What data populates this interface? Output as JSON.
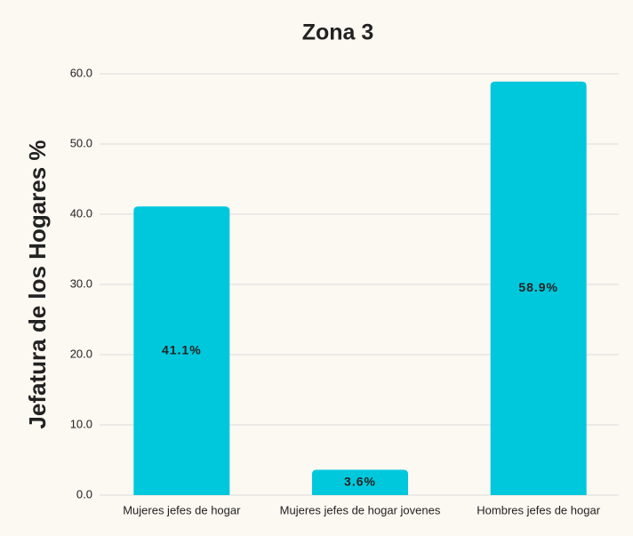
{
  "chart_data": {
    "type": "bar",
    "title": "Zona 3",
    "y_label": "Jefatura de los Hogares  %",
    "categories": [
      "Mujeres jefes de hogar",
      "Mujeres jefes de hogar jovenes",
      "Hombres jefes de hogar"
    ],
    "values": [
      41.1,
      3.6,
      58.9
    ],
    "value_labels": [
      "41.1%",
      "3.6%",
      "58.9%"
    ],
    "color": "#00c8dc",
    "ylim": [
      0,
      60
    ],
    "yticks": [
      {
        "value": 0,
        "label": "0.0"
      },
      {
        "value": 10,
        "label": "10.0"
      },
      {
        "value": 20,
        "label": "20.0"
      },
      {
        "value": 30,
        "label": "30.0"
      },
      {
        "value": 40,
        "label": "40.0"
      },
      {
        "value": 50,
        "label": "50.0"
      },
      {
        "value": 60,
        "label": "60.0"
      }
    ],
    "grid": true
  }
}
